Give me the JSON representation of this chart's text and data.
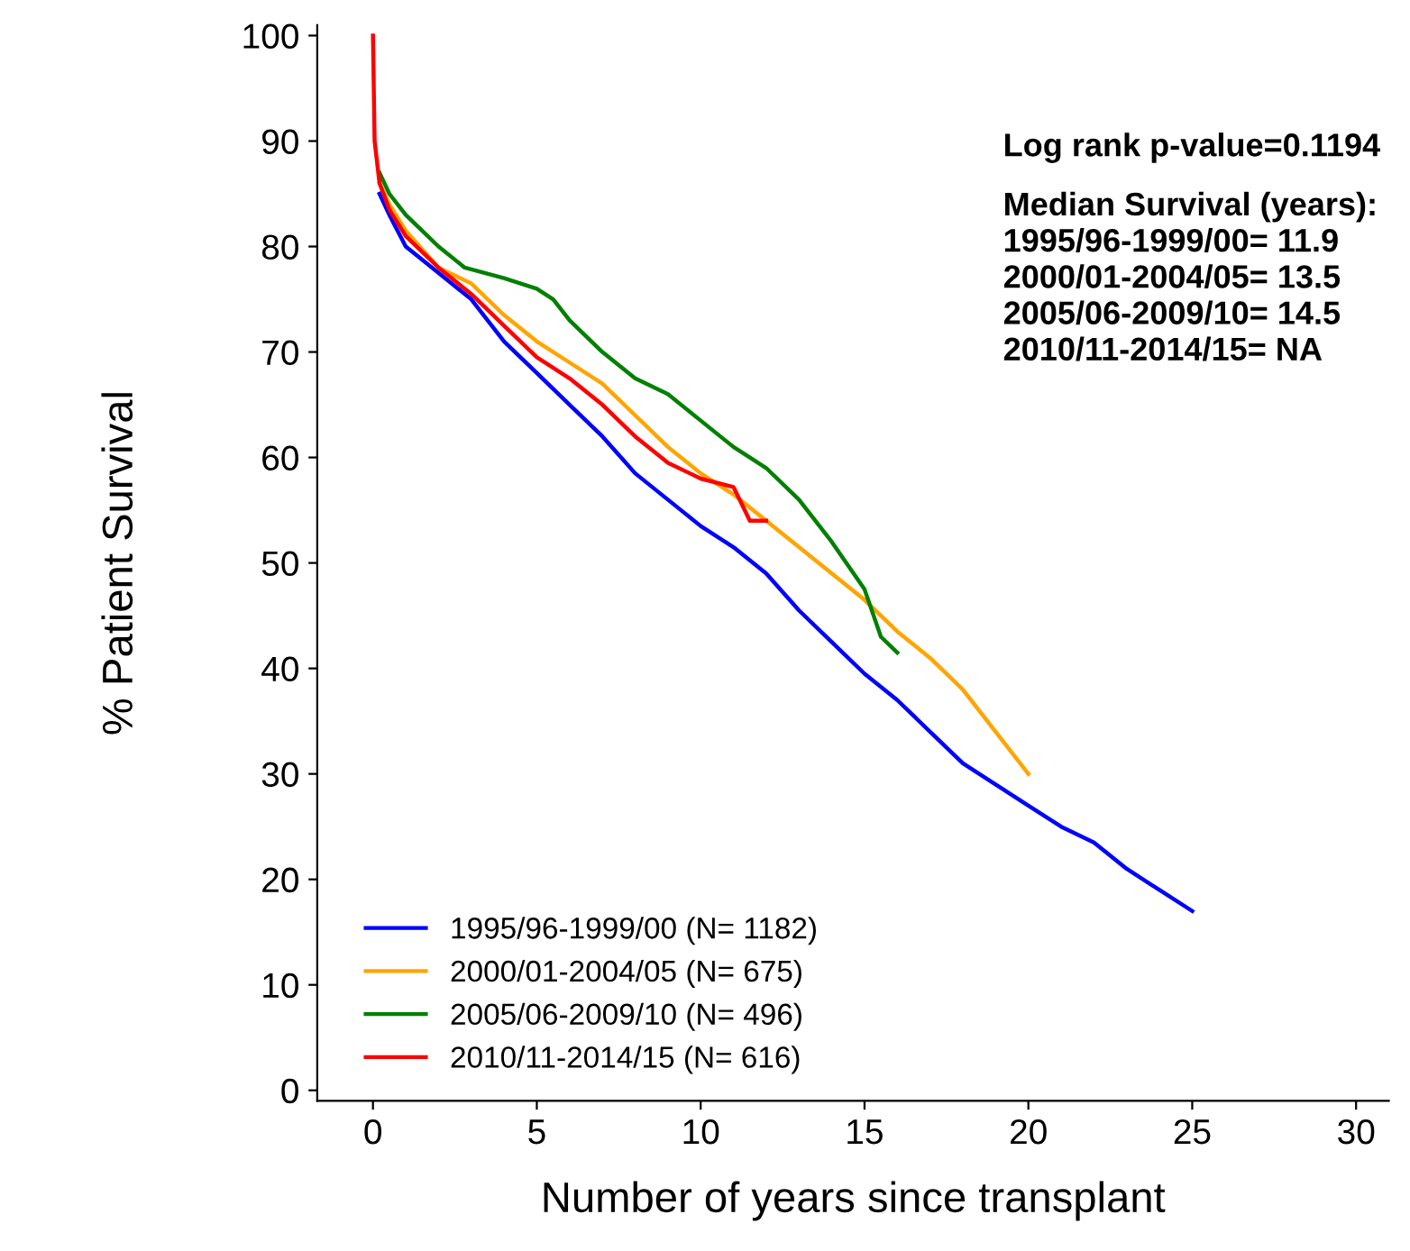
{
  "chart_data": {
    "type": "line",
    "xlabel": "Number of years since transplant",
    "ylabel": "% Patient Survival",
    "xlim": [
      -1.7,
      31
    ],
    "ylim": [
      -1,
      101
    ],
    "xticks": [
      0,
      5,
      10,
      15,
      20,
      25,
      30
    ],
    "yticks": [
      0,
      10,
      20,
      30,
      40,
      50,
      60,
      70,
      80,
      90,
      100
    ],
    "grid": false,
    "legend": "bottom left",
    "marker": "none",
    "line_style": "solid",
    "annotations": [
      "Log rank p-value=0.1194",
      "Median Survival (years):\n1995/96-1999/00= 11.9\n2000/01-2004/05= 13.5\n2005/06-2009/10= 14.5\n2010/11-2014/15= NA"
    ],
    "series": [
      {
        "name": "1995/96-1999/00 (N= 1182)",
        "color": "#0000ff",
        "x": [
          0.2,
          0.5,
          1,
          2,
          3,
          4,
          5,
          6,
          7,
          8,
          9,
          10,
          11,
          12,
          13,
          14,
          15,
          16,
          17,
          18,
          19,
          20,
          21,
          22,
          23,
          24,
          25
        ],
        "values": [
          85,
          83,
          80,
          77.5,
          75,
          71,
          68,
          65,
          62,
          58.5,
          56,
          53.5,
          51.5,
          49,
          45.5,
          42.5,
          39.5,
          37,
          34,
          31,
          29,
          27,
          25,
          23.5,
          21,
          19,
          17
        ]
      },
      {
        "name": "2000/01-2004/05 (N= 675)",
        "color": "#ffa500",
        "x": [
          0.2,
          0.5,
          1,
          2,
          3,
          4,
          5,
          6,
          7,
          8,
          9,
          10,
          11,
          12,
          13,
          14,
          15,
          16,
          17,
          18,
          19,
          20
        ],
        "values": [
          86,
          84,
          81.5,
          78,
          76.5,
          73.5,
          71,
          69,
          67,
          64,
          61,
          58.5,
          56.5,
          54,
          51.5,
          49,
          46.5,
          43.5,
          41,
          38,
          34,
          30
        ]
      },
      {
        "name": "2005/06-2009/10 (N= 496)",
        "color": "#008000",
        "x": [
          0.2,
          0.5,
          1,
          2,
          2.8,
          4,
          5,
          5.5,
          6,
          7,
          8,
          9,
          10,
          11,
          12,
          13,
          14,
          15,
          15.5,
          16
        ],
        "values": [
          87,
          85,
          83,
          80,
          78,
          77,
          76,
          75,
          73,
          70,
          67.5,
          66,
          63.5,
          61,
          59,
          56,
          52,
          47.5,
          43,
          41.5
        ]
      },
      {
        "name": "2010/11-2014/15 (N= 616)",
        "color": "#ff0000",
        "x": [
          0,
          0.05,
          0.2,
          0.5,
          1,
          2,
          3,
          4,
          5,
          6,
          7,
          8,
          9,
          10,
          11,
          11.5,
          12
        ],
        "values": [
          100,
          90,
          86,
          83.5,
          81,
          78,
          75.5,
          72.5,
          69.5,
          67.5,
          65,
          62,
          59.5,
          58,
          57.2,
          54,
          54
        ]
      }
    ]
  }
}
